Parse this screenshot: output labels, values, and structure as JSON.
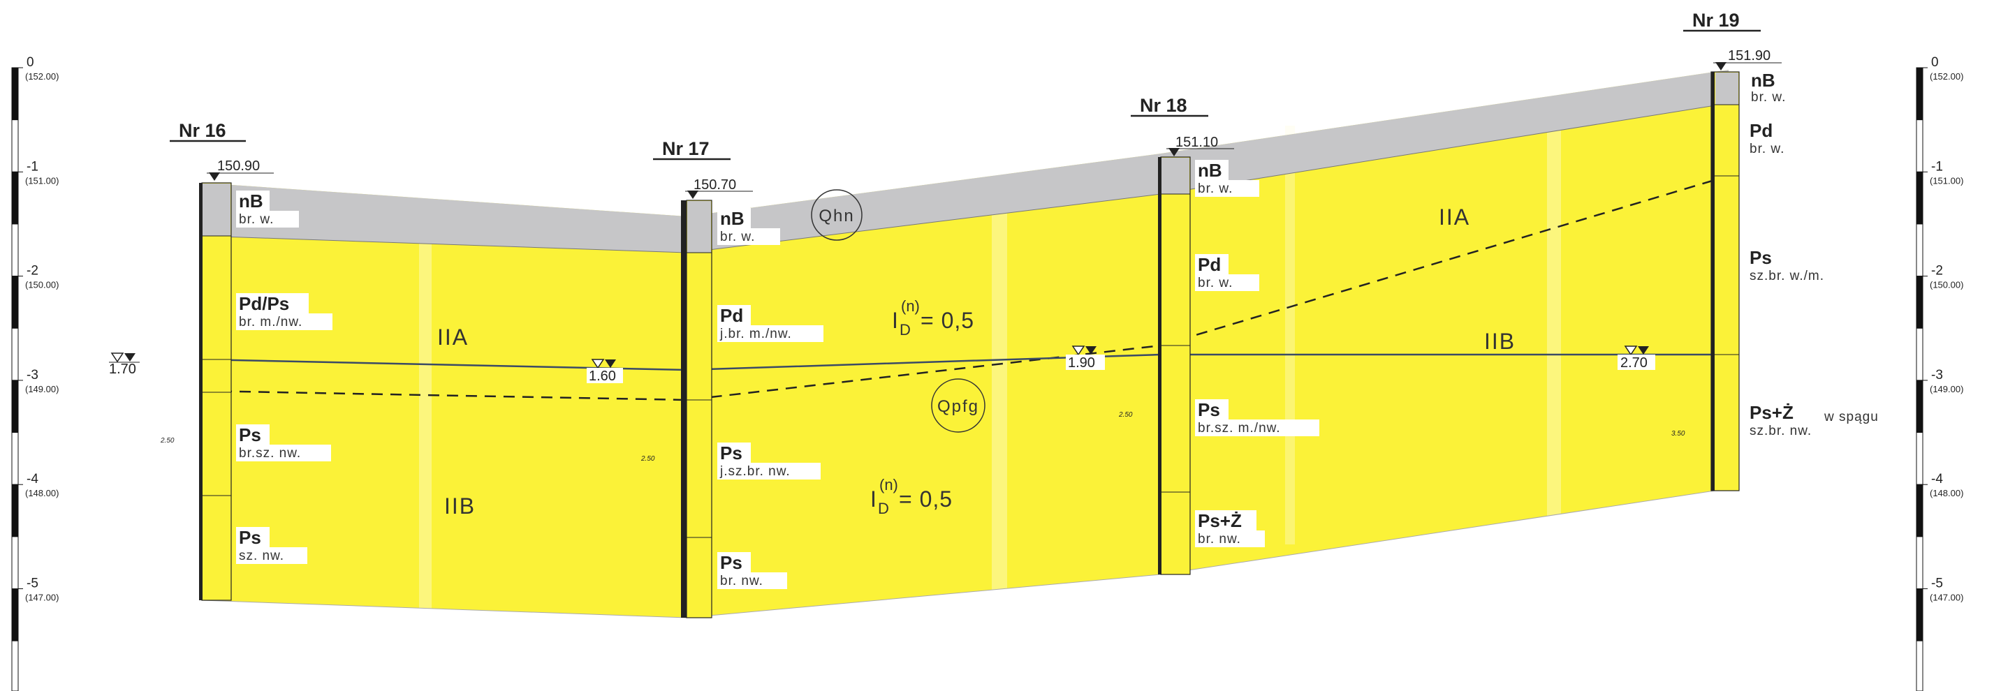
{
  "boreholes": [
    {
      "name": "Nr 16",
      "elevation": "150.90",
      "layers": [
        {
          "soil": "nB",
          "desc": "br.  w."
        },
        {
          "soil": "Pd/Ps",
          "desc": "br.  m./nw."
        },
        {
          "soil": "Ps",
          "desc": "br.sz.  nw."
        },
        {
          "soil": "Ps",
          "desc": "sz.  nw."
        }
      ]
    },
    {
      "name": "Nr 17",
      "elevation": "150.70",
      "layers": [
        {
          "soil": "nB",
          "desc": "br.  w."
        },
        {
          "soil": "Pd",
          "desc": "j.br.  m./nw."
        },
        {
          "soil": "Ps",
          "desc": "j.sz.br.  nw."
        },
        {
          "soil": "Ps",
          "desc": "br.  nw."
        }
      ]
    },
    {
      "name": "Nr 18",
      "elevation": "151.10",
      "layers": [
        {
          "soil": "nB",
          "desc": "br.  w."
        },
        {
          "soil": "Pd",
          "desc": "br.  w."
        },
        {
          "soil": "Ps",
          "desc": "br.sz.  m./nw."
        },
        {
          "soil": "Ps+Ż",
          "desc": "br.  nw."
        }
      ]
    },
    {
      "name": "Nr 19",
      "elevation": "151.90",
      "layers": [
        {
          "soil": "nB",
          "desc": "br.  w."
        },
        {
          "soil": "Pd",
          "desc": "br.  w."
        },
        {
          "soil": "Ps",
          "desc": "sz.br.  w./m."
        },
        {
          "soil": "Ps+Ż",
          "extra": "w spągu",
          "desc": "sz.br.  nw."
        }
      ]
    }
  ],
  "water_levels": [
    {
      "label": "1.70"
    },
    {
      "label": "1.60"
    },
    {
      "label": "1.90"
    },
    {
      "label": "2.70"
    }
  ],
  "bottom_marks": [
    "2.50",
    "2.50",
    "2.50",
    "3.50"
  ],
  "zones": {
    "upper_left": "IIA",
    "lower_left": "IIB",
    "upper_right": "IIA",
    "lower_right": "IIB"
  },
  "stratigraphy": {
    "top": "Qhn",
    "bottom": "Qpfg"
  },
  "density_index": {
    "symbol": "I",
    "sub": "D",
    "sup": "(n)",
    "value": "= 0,5"
  },
  "depth_scale": [
    {
      "depth": "0",
      "elev": "(152.00)"
    },
    {
      "depth": "-1",
      "elev": "(151.00)"
    },
    {
      "depth": "-2",
      "elev": "(150.00)"
    },
    {
      "depth": "-3",
      "elev": "(149.00)"
    },
    {
      "depth": "-4",
      "elev": "(148.00)"
    },
    {
      "depth": "-5",
      "elev": "(147.00)"
    }
  ],
  "colors": {
    "fill_soil": "#fbf238",
    "fill_topsoil": "#c6c6c8",
    "line": "#222222",
    "water_line": "#3a4a66"
  }
}
